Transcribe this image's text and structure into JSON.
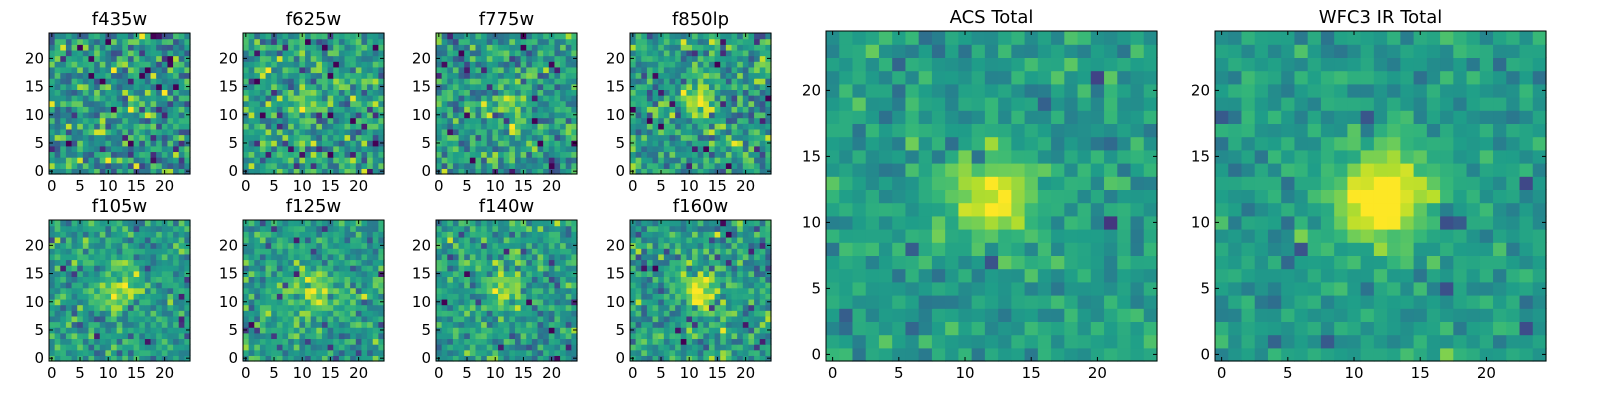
{
  "figure": {
    "colormap": "viridis",
    "pixel_grid": 25,
    "accent_colors": [
      "#440154",
      "#31688e",
      "#35b779",
      "#fde725"
    ]
  },
  "chart_data": [
    {
      "type": "heatmap",
      "title": "f435w",
      "xticks": [
        0,
        5,
        10,
        15,
        20
      ],
      "yticks": [
        0,
        5,
        10,
        15,
        20
      ],
      "xlim": [
        0,
        24
      ],
      "ylim": [
        0,
        24
      ],
      "source_strength": 0.05,
      "noise": 1.0,
      "seed": 11
    },
    {
      "type": "heatmap",
      "title": "f625w",
      "xticks": [
        0,
        5,
        10,
        15,
        20
      ],
      "yticks": [
        0,
        5,
        10,
        15,
        20
      ],
      "xlim": [
        0,
        24
      ],
      "ylim": [
        0,
        24
      ],
      "source_strength": 0.45,
      "noise": 0.9,
      "seed": 23
    },
    {
      "type": "heatmap",
      "title": "f775w",
      "xticks": [
        0,
        5,
        10,
        15,
        20
      ],
      "yticks": [
        0,
        5,
        10,
        15,
        20
      ],
      "xlim": [
        0,
        24
      ],
      "ylim": [
        0,
        24
      ],
      "source_strength": 0.6,
      "noise": 0.85,
      "seed": 37
    },
    {
      "type": "heatmap",
      "title": "f850lp",
      "xticks": [
        0,
        5,
        10,
        15,
        20
      ],
      "yticks": [
        0,
        5,
        10,
        15,
        20
      ],
      "xlim": [
        0,
        24
      ],
      "ylim": [
        0,
        24
      ],
      "source_strength": 0.55,
      "noise": 0.9,
      "seed": 41
    },
    {
      "type": "heatmap",
      "title": "f105w",
      "xticks": [
        0,
        5,
        10,
        15,
        20
      ],
      "yticks": [
        0,
        5,
        10,
        15,
        20
      ],
      "xlim": [
        0,
        24
      ],
      "ylim": [
        0,
        24
      ],
      "source_strength": 0.7,
      "noise": 0.7,
      "seed": 53
    },
    {
      "type": "heatmap",
      "title": "f125w",
      "xticks": [
        0,
        5,
        10,
        15,
        20
      ],
      "yticks": [
        0,
        5,
        10,
        15,
        20
      ],
      "xlim": [
        0,
        24
      ],
      "ylim": [
        0,
        24
      ],
      "source_strength": 0.8,
      "noise": 0.65,
      "seed": 67
    },
    {
      "type": "heatmap",
      "title": "f140w",
      "xticks": [
        0,
        5,
        10,
        15,
        20
      ],
      "yticks": [
        0,
        5,
        10,
        15,
        20
      ],
      "xlim": [
        0,
        24
      ],
      "ylim": [
        0,
        24
      ],
      "source_strength": 0.8,
      "noise": 0.7,
      "seed": 71
    },
    {
      "type": "heatmap",
      "title": "f160w",
      "xticks": [
        0,
        5,
        10,
        15,
        20
      ],
      "yticks": [
        0,
        5,
        10,
        15,
        20
      ],
      "xlim": [
        0,
        24
      ],
      "ylim": [
        0,
        24
      ],
      "source_strength": 0.9,
      "noise": 0.75,
      "seed": 83
    },
    {
      "type": "heatmap",
      "title": "ACS Total",
      "xticks": [
        0,
        5,
        10,
        15,
        20
      ],
      "yticks": [
        0,
        5,
        10,
        15,
        20
      ],
      "xlim": [
        0,
        24
      ],
      "ylim": [
        0,
        24
      ],
      "source_strength": 1.0,
      "noise": 0.45,
      "seed": 97
    },
    {
      "type": "heatmap",
      "title": "WFC3 IR Total",
      "xticks": [
        0,
        5,
        10,
        15,
        20
      ],
      "yticks": [
        0,
        5,
        10,
        15,
        20
      ],
      "xlim": [
        0,
        24
      ],
      "ylim": [
        0,
        24
      ],
      "source_strength": 1.3,
      "noise": 0.4,
      "seed": 101
    }
  ]
}
